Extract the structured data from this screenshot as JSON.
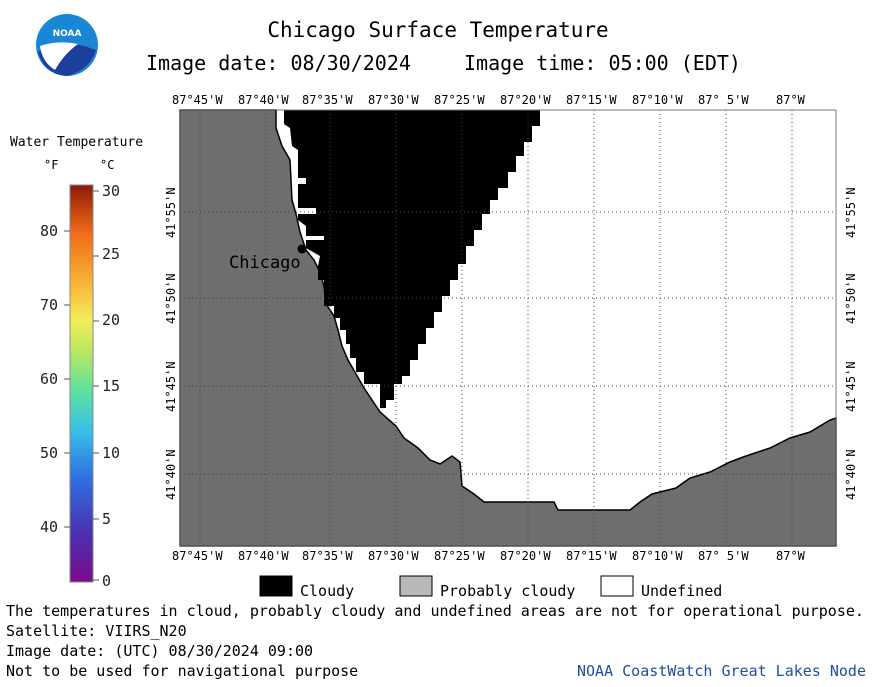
{
  "header": {
    "title": "Chicago Surface Temperature",
    "image_date": "Image date: 08/30/2024",
    "image_time": "Image time: 05:00 (EDT)"
  },
  "colorbar": {
    "title": "Water Temperature",
    "unit_f": "°F",
    "unit_c": "°C",
    "f_ticks": [
      "80",
      "70",
      "60",
      "50",
      "40"
    ],
    "c_ticks": [
      "30",
      "25",
      "20",
      "15",
      "10",
      "5",
      "0"
    ]
  },
  "map": {
    "lon_labels": [
      "87°45'W",
      "87°40'W",
      "87°35'W",
      "87°30'W",
      "87°25'W",
      "87°20'W",
      "87°15'W",
      "87°10'W",
      "87° 5'W",
      "87°W"
    ],
    "lat_labels": [
      "41°55'N",
      "41°50'N",
      "41°45'N",
      "41°40'N"
    ],
    "city_label": "Chicago",
    "colors": {
      "land": "#6e6e6e",
      "cloud": "#000000",
      "undefined": "#ffffff"
    }
  },
  "legend": {
    "cloudy": "Cloudy",
    "probably_cloudy": "Probably cloudy",
    "undefined": "Undefined"
  },
  "footer": {
    "note": "The temperatures in cloud, probably cloudy and undefined areas are not for operational purpose.",
    "satellite": "Satellite: VIIRS_N20",
    "utc_date": "Image date: (UTC) 08/30/2024  09:00",
    "nav_warning": "Not to be used for navigational purpose",
    "credit": "NOAA CoastWatch Great Lakes Node"
  },
  "logo": {
    "text": "NOAA"
  }
}
